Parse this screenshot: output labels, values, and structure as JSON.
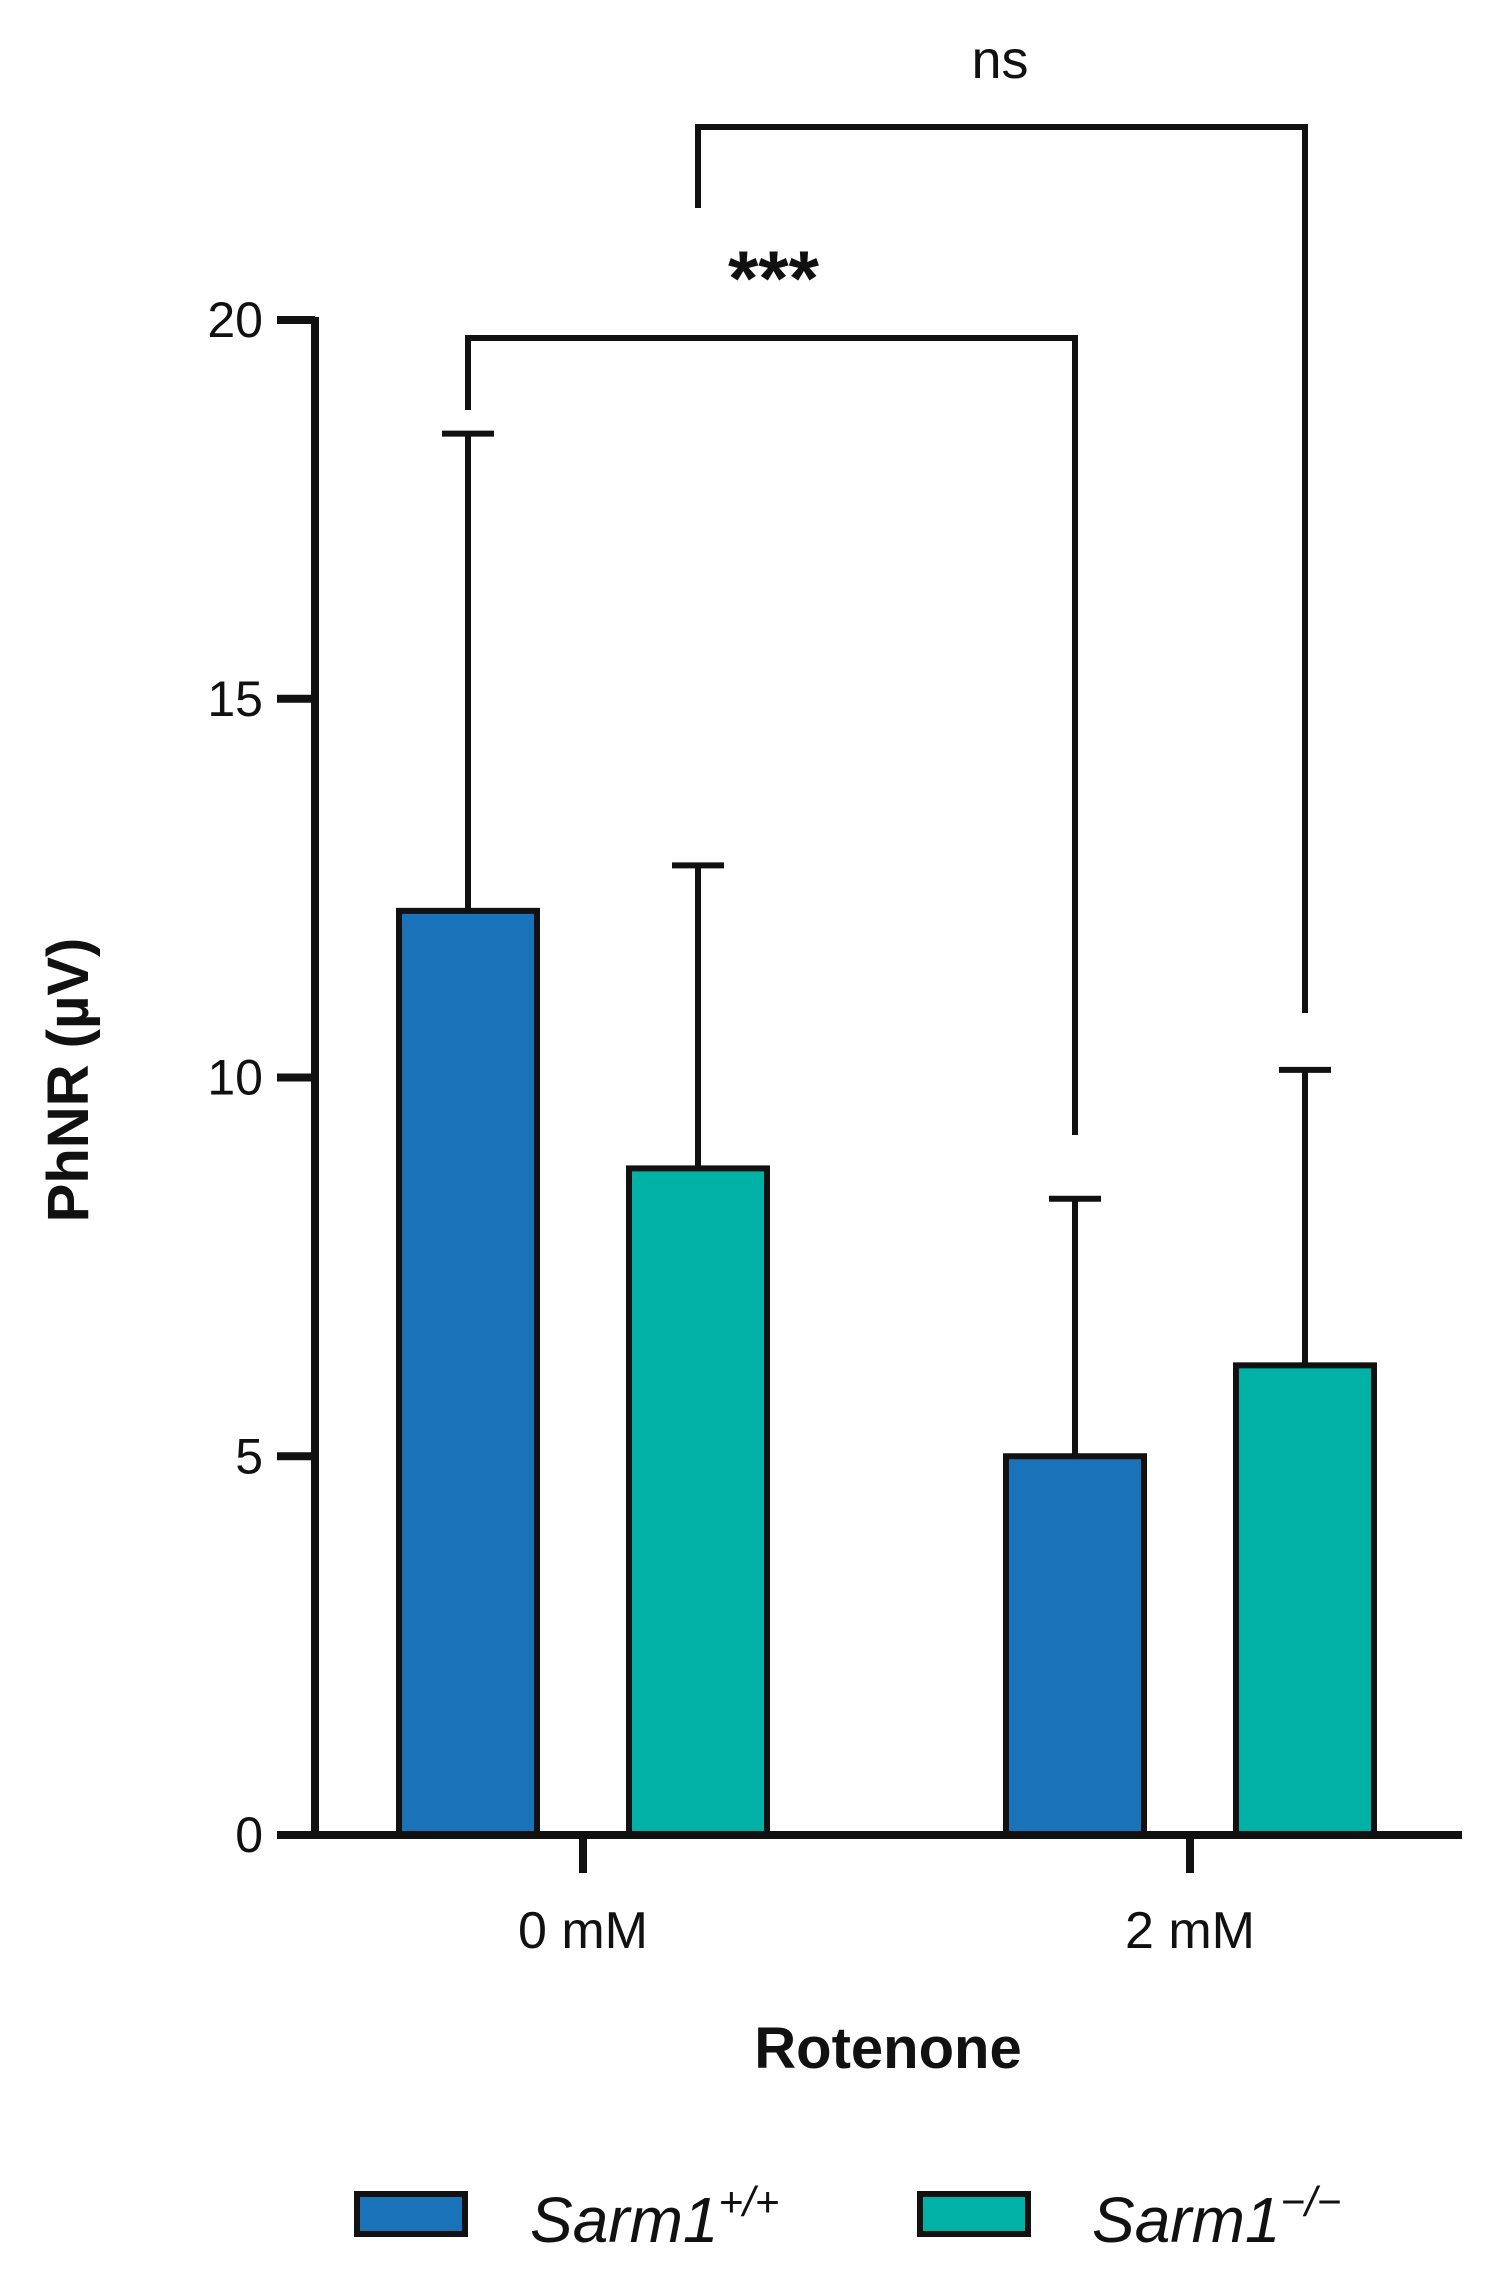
{
  "chart_data": {
    "type": "bar",
    "title": "",
    "xlabel": "Rotenone",
    "ylabel": "PhNR (µV)",
    "ylim": [
      0,
      20
    ],
    "yticks": [
      "0",
      "5",
      "10",
      "15",
      "20"
    ],
    "categories": [
      "0 mM",
      "2 mM"
    ],
    "grid": false,
    "legend_position": "bottom",
    "series": [
      {
        "name": "Sarm1",
        "superscript": "+/+",
        "color": "#1a72b9",
        "values": [
          12.2,
          5.0
        ],
        "errors": [
          6.3,
          3.4
        ]
      },
      {
        "name": "Sarm1",
        "superscript": "−/−",
        "color": "#00b2a5",
        "values": [
          8.8,
          6.2
        ],
        "errors": [
          4.0,
          3.9
        ]
      }
    ],
    "comparisons": [
      {
        "label": "***",
        "from": "0 mM / Sarm1+/+",
        "to": "2 mM / Sarm1+/+"
      },
      {
        "label": "ns",
        "from": "0 mM / Sarm1−/−",
        "to": "2 mM / Sarm1−/−"
      }
    ]
  }
}
